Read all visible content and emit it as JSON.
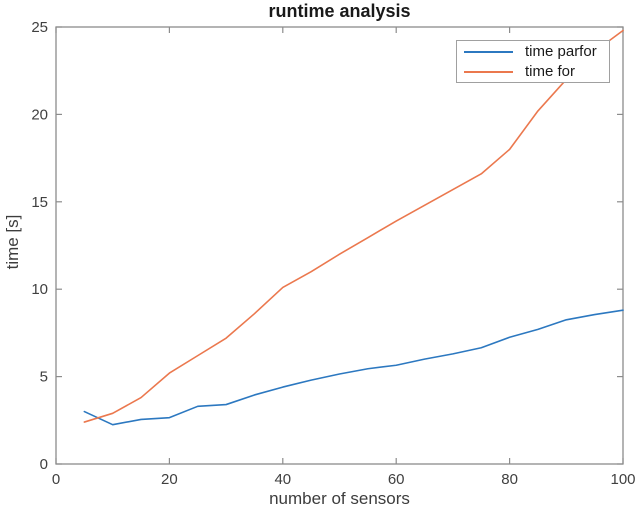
{
  "chart_data": {
    "type": "line",
    "title": "runtime analysis",
    "xlabel": "number of sensors",
    "ylabel": "time [s]",
    "xlim": [
      0,
      100
    ],
    "ylim": [
      0,
      25
    ],
    "xticks": [
      0,
      20,
      40,
      60,
      80,
      100
    ],
    "yticks": [
      0,
      5,
      10,
      15,
      20,
      25
    ],
    "grid": false,
    "legend_position": "top-right-inside",
    "x": [
      5,
      10,
      15,
      20,
      25,
      30,
      35,
      40,
      45,
      50,
      55,
      60,
      65,
      70,
      75,
      80,
      85,
      90,
      95,
      100
    ],
    "series": [
      {
        "name": "time parfor",
        "color": "#2c78c0",
        "values": [
          3.0,
          2.25,
          2.55,
          2.65,
          3.3,
          3.4,
          3.95,
          4.4,
          4.8,
          5.15,
          5.45,
          5.65,
          6.0,
          6.3,
          6.65,
          7.25,
          7.7,
          8.25,
          8.55,
          8.8
        ]
      },
      {
        "name": "time for",
        "color": "#eb784e",
        "values": [
          2.4,
          2.9,
          3.8,
          5.2,
          6.2,
          7.2,
          8.6,
          10.1,
          11.0,
          12.0,
          12.95,
          13.9,
          14.8,
          15.7,
          16.6,
          18.0,
          20.2,
          22.0,
          23.6,
          24.8
        ]
      }
    ]
  },
  "colors": {
    "background": "#ffffff",
    "axis": "#8c8c8c",
    "tick_label": "#404040",
    "axis_label": "#3d3d3d",
    "title": "#1a1a1a",
    "legend_border": "#a0a0a0",
    "legend_background": "#ffffff",
    "legend_text": "#1a1a1a"
  }
}
